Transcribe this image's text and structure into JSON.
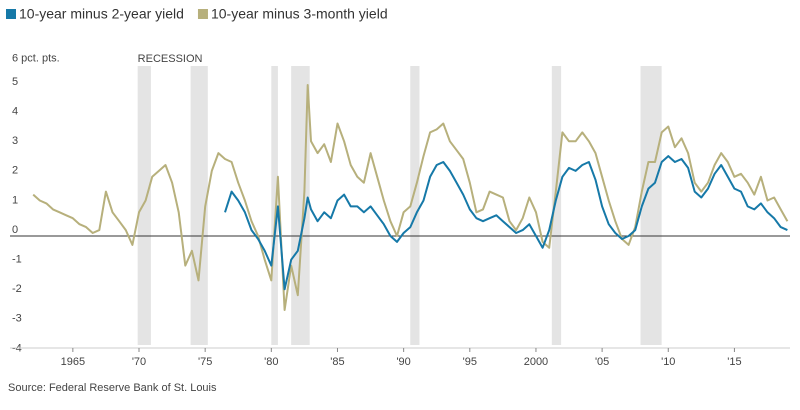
{
  "chart_data": {
    "type": "line",
    "source": "Source: Federal Reserve Bank of St. Louis",
    "recession_label": "RECESSION",
    "recessions": [
      [
        1969.9,
        1970.9
      ],
      [
        1973.9,
        1975.2
      ],
      [
        1980.0,
        1980.5
      ],
      [
        1981.5,
        1982.9
      ],
      [
        1990.5,
        1991.2
      ],
      [
        2001.2,
        2001.9
      ],
      [
        2007.9,
        2009.5
      ]
    ],
    "x": [
      1962.0,
      1962.5,
      1963.0,
      1963.5,
      1964.0,
      1964.5,
      1965.0,
      1965.5,
      1966.0,
      1966.5,
      1967.0,
      1967.5,
      1968.0,
      1968.5,
      1969.0,
      1969.5,
      1970.0,
      1970.5,
      1971.0,
      1971.5,
      1972.0,
      1972.5,
      1973.0,
      1973.5,
      1974.0,
      1974.5,
      1975.0,
      1975.5,
      1976.0,
      1976.5,
      1977.0,
      1977.5,
      1978.0,
      1978.5,
      1979.0,
      1979.5,
      1980.0,
      1980.5,
      1981.0,
      1981.5,
      1982.0,
      1982.5,
      1982.75,
      1983.0,
      1983.5,
      1984.0,
      1984.5,
      1985.0,
      1985.5,
      1986.0,
      1986.5,
      1987.0,
      1987.5,
      1988.0,
      1988.5,
      1989.0,
      1989.5,
      1990.0,
      1990.5,
      1991.0,
      1991.5,
      1992.0,
      1992.5,
      1993.0,
      1993.5,
      1994.0,
      1994.5,
      1995.0,
      1995.5,
      1996.0,
      1996.5,
      1997.0,
      1997.5,
      1998.0,
      1998.5,
      1999.0,
      1999.5,
      2000.0,
      2000.5,
      2001.0,
      2001.5,
      2002.0,
      2002.5,
      2003.0,
      2003.5,
      2004.0,
      2004.5,
      2005.0,
      2005.5,
      2006.0,
      2006.5,
      2007.0,
      2007.5,
      2008.0,
      2008.5,
      2009.0,
      2009.5,
      2010.0,
      2010.5,
      2011.0,
      2011.5,
      2012.0,
      2012.5,
      2013.0,
      2013.5,
      2014.0,
      2014.5,
      2015.0,
      2015.5,
      2016.0,
      2016.5,
      2017.0,
      2017.5,
      2018.0,
      2018.5,
      2019.0
    ],
    "series": [
      {
        "name": "10-year minus 3-month yield",
        "color": "#b7b07c",
        "values": [
          1.4,
          1.2,
          1.1,
          0.9,
          0.8,
          0.7,
          0.6,
          0.4,
          0.3,
          0.1,
          0.2,
          1.5,
          0.8,
          0.5,
          0.2,
          -0.3,
          0.8,
          1.2,
          2.0,
          2.2,
          2.4,
          1.8,
          0.8,
          -1.0,
          -0.5,
          -1.5,
          1.0,
          2.2,
          2.8,
          2.6,
          2.5,
          1.8,
          1.2,
          0.5,
          0.0,
          -0.8,
          -1.5,
          2.0,
          -2.5,
          -1.0,
          -2.0,
          1.5,
          5.1,
          3.2,
          2.8,
          3.1,
          2.5,
          3.8,
          3.2,
          2.4,
          2.0,
          1.8,
          2.8,
          2.0,
          1.2,
          0.5,
          0.0,
          0.8,
          1.0,
          1.8,
          2.7,
          3.5,
          3.6,
          3.8,
          3.2,
          2.9,
          2.6,
          1.8,
          0.8,
          0.9,
          1.5,
          1.4,
          1.3,
          0.5,
          0.2,
          0.6,
          1.3,
          0.8,
          -0.2,
          -0.4,
          1.5,
          3.5,
          3.2,
          3.2,
          3.5,
          3.2,
          2.8,
          2.0,
          1.2,
          0.5,
          -0.1,
          -0.3,
          0.3,
          1.5,
          2.5,
          2.5,
          3.5,
          3.7,
          3.0,
          3.3,
          2.8,
          1.8,
          1.5,
          1.8,
          2.4,
          2.8,
          2.5,
          2.0,
          2.1,
          1.8,
          1.4,
          2.0,
          1.2,
          1.3,
          0.9,
          0.5
        ]
      },
      {
        "name": "10-year minus 2-year yield",
        "color": "#1679a8",
        "values": [
          null,
          null,
          null,
          null,
          null,
          null,
          null,
          null,
          null,
          null,
          null,
          null,
          null,
          null,
          null,
          null,
          null,
          null,
          null,
          null,
          null,
          null,
          null,
          null,
          null,
          null,
          null,
          null,
          null,
          0.8,
          1.5,
          1.2,
          0.8,
          0.2,
          -0.1,
          -0.5,
          -1.0,
          1.0,
          -1.8,
          -0.8,
          -0.5,
          0.6,
          1.3,
          0.9,
          0.5,
          0.8,
          0.6,
          1.2,
          1.4,
          1.0,
          1.0,
          0.8,
          1.0,
          0.7,
          0.4,
          0.0,
          -0.2,
          0.1,
          0.3,
          0.8,
          1.2,
          2.0,
          2.4,
          2.5,
          2.2,
          1.8,
          1.4,
          0.9,
          0.6,
          0.5,
          0.6,
          0.7,
          0.5,
          0.3,
          0.1,
          0.2,
          0.4,
          0.0,
          -0.4,
          0.2,
          1.2,
          2.0,
          2.3,
          2.2,
          2.4,
          2.5,
          1.9,
          1.0,
          0.4,
          0.1,
          -0.1,
          0.0,
          0.2,
          1.0,
          1.6,
          1.8,
          2.5,
          2.7,
          2.5,
          2.6,
          2.3,
          1.5,
          1.3,
          1.6,
          2.1,
          2.4,
          2.0,
          1.6,
          1.5,
          1.0,
          0.9,
          1.1,
          0.8,
          0.6,
          0.3,
          0.2
        ]
      }
    ],
    "xlim": [
      1960.25,
      2019.2
    ],
    "xticks": [
      {
        "value": 1965,
        "label": "1965"
      },
      {
        "value": 1970,
        "label": "'70"
      },
      {
        "value": 1975,
        "label": "'75"
      },
      {
        "value": 1980,
        "label": "'80"
      },
      {
        "value": 1985,
        "label": "'85"
      },
      {
        "value": 1990,
        "label": "'90"
      },
      {
        "value": 1995,
        "label": "'95"
      },
      {
        "value": 2000,
        "label": "2000"
      },
      {
        "value": 2005,
        "label": "'05"
      },
      {
        "value": 2010,
        "label": "'10"
      },
      {
        "value": 2015,
        "label": "'15"
      }
    ],
    "ylim": [
      -4,
      6
    ],
    "yticks": [
      {
        "value": 6,
        "label": "6 pct. pts."
      },
      5,
      4,
      3,
      2,
      1,
      0,
      -1,
      -2,
      -3,
      -4
    ],
    "grid": false
  }
}
